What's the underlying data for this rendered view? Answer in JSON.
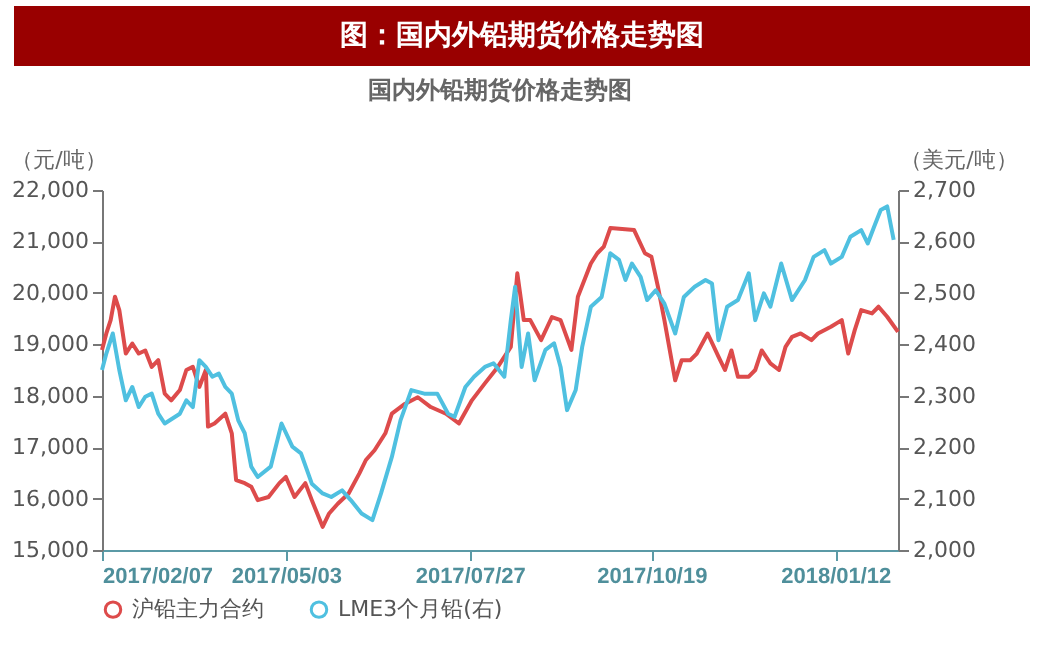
{
  "chart_data": {
    "type": "line",
    "title": "图：国内外铅期货价格走势图",
    "subtitle": "国内外铅期货价格走势图",
    "ylabel": "（元/吨）",
    "y2label": "（美元/吨）",
    "xlim": [
      "2017-02-07",
      "2018-02-10"
    ],
    "xticks": [
      {
        "value": "2017-02-07",
        "label": "2017/02/07"
      },
      {
        "value": "2017-05-03",
        "label": "2017/05/03"
      },
      {
        "value": "2017-07-27",
        "label": "2017/07/27"
      },
      {
        "value": "2017-10-19",
        "label": "2017/10/19"
      },
      {
        "value": "2018-01-12",
        "label": "2018/01/12"
      }
    ],
    "ylim": [
      15000,
      22000
    ],
    "yticks": [
      {
        "value": 15000,
        "label": "15,000"
      },
      {
        "value": 16000,
        "label": "16,000"
      },
      {
        "value": 17000,
        "label": "17,000"
      },
      {
        "value": 18000,
        "label": "18,000"
      },
      {
        "value": 19000,
        "label": "19,000"
      },
      {
        "value": 20000,
        "label": "20,000"
      },
      {
        "value": 21000,
        "label": "21,000"
      },
      {
        "value": 22000,
        "label": "22,000"
      }
    ],
    "y2lim": [
      2000,
      2700
    ],
    "y2ticks": [
      {
        "value": 2000,
        "label": "2,000"
      },
      {
        "value": 2100,
        "label": "2,100"
      },
      {
        "value": 2200,
        "label": "2,200"
      },
      {
        "value": 2300,
        "label": "2,300"
      },
      {
        "value": 2400,
        "label": "2,400"
      },
      {
        "value": 2500,
        "label": "2,500"
      },
      {
        "value": 2600,
        "label": "2,600"
      },
      {
        "value": 2700,
        "label": "2,700"
      }
    ],
    "legend": "bottom",
    "grid": false,
    "series": [
      {
        "name": "沪铅主力合约",
        "color": "#dd4b4b",
        "x": [
          "2017-02-07",
          "2017-02-09",
          "2017-02-11",
          "2017-02-13",
          "2017-02-15",
          "2017-02-18",
          "2017-02-21",
          "2017-02-24",
          "2017-02-27",
          "2017-03-02",
          "2017-03-05",
          "2017-03-08",
          "2017-03-11",
          "2017-03-15",
          "2017-03-18",
          "2017-03-21",
          "2017-03-24",
          "2017-03-27",
          "2017-03-28",
          "2017-03-31",
          "2017-04-05",
          "2017-04-08",
          "2017-04-10",
          "2017-04-14",
          "2017-04-17",
          "2017-04-20",
          "2017-04-25",
          "2017-04-30",
          "2017-05-03",
          "2017-05-07",
          "2017-05-12",
          "2017-05-15",
          "2017-05-20",
          "2017-05-23",
          "2017-05-27",
          "2017-06-01",
          "2017-06-06",
          "2017-06-09",
          "2017-06-13",
          "2017-06-18",
          "2017-06-21",
          "2017-06-27",
          "2017-07-03",
          "2017-07-09",
          "2017-07-16",
          "2017-07-22",
          "2017-07-28",
          "2017-08-03",
          "2017-08-09",
          "2017-08-15",
          "2017-08-18",
          "2017-08-21",
          "2017-08-24",
          "2017-08-29",
          "2017-09-03",
          "2017-09-07",
          "2017-09-12",
          "2017-09-15",
          "2017-09-21",
          "2017-09-24",
          "2017-09-27",
          "2017-09-30",
          "2017-10-11",
          "2017-10-16",
          "2017-10-19",
          "2017-10-22",
          "2017-10-25",
          "2017-10-30",
          "2017-11-02",
          "2017-11-06",
          "2017-11-09",
          "2017-11-14",
          "2017-11-19",
          "2017-11-22",
          "2017-11-25",
          "2017-11-28",
          "2017-12-03",
          "2017-12-06",
          "2017-12-09",
          "2017-12-13",
          "2017-12-17",
          "2017-12-20",
          "2017-12-23",
          "2017-12-27",
          "2018-01-01",
          "2018-01-04",
          "2018-01-10",
          "2018-01-15",
          "2018-01-18",
          "2018-01-21",
          "2018-01-24",
          "2018-01-29",
          "2018-02-01",
          "2018-02-05",
          "2018-02-10"
        ],
        "values": [
          18890,
          19210,
          19470,
          19925,
          19665,
          18820,
          19015,
          18820,
          18880,
          18560,
          18690,
          18040,
          17910,
          18110,
          18500,
          18560,
          18170,
          18500,
          17400,
          17460,
          17650,
          17270,
          16360,
          16300,
          16230,
          15970,
          16030,
          16300,
          16420,
          16030,
          16300,
          15970,
          15450,
          15710,
          15900,
          16100,
          16490,
          16750,
          16940,
          17270,
          17650,
          17840,
          17970,
          17780,
          17650,
          17460,
          17910,
          18240,
          18560,
          18950,
          20380,
          19470,
          19470,
          19080,
          19530,
          19470,
          18890,
          19925,
          20570,
          20770,
          20900,
          21260,
          21220,
          20770,
          20700,
          20120,
          19470,
          18300,
          18690,
          18690,
          18820,
          19210,
          18760,
          18500,
          18880,
          18370,
          18370,
          18500,
          18880,
          18630,
          18500,
          18950,
          19145,
          19210,
          19080,
          19210,
          19340,
          19470,
          18820,
          19275,
          19665,
          19600,
          19730,
          19535,
          19240
        ]
      },
      {
        "name": "LME3个月铅(右)",
        "color": "#4fc0e0",
        "axis": "y2",
        "x": [
          "2017-02-07",
          "2017-02-09",
          "2017-02-12",
          "2017-02-15",
          "2017-02-18",
          "2017-02-21",
          "2017-02-24",
          "2017-02-27",
          "2017-03-02",
          "2017-03-05",
          "2017-03-08",
          "2017-03-15",
          "2017-03-18",
          "2017-03-21",
          "2017-03-24",
          "2017-03-27",
          "2017-03-30",
          "2017-04-02",
          "2017-04-05",
          "2017-04-08",
          "2017-04-11",
          "2017-04-14",
          "2017-04-17",
          "2017-04-20",
          "2017-04-26",
          "2017-05-01",
          "2017-05-06",
          "2017-05-10",
          "2017-05-15",
          "2017-05-20",
          "2017-05-24",
          "2017-05-29",
          "2017-06-02",
          "2017-06-07",
          "2017-06-12",
          "2017-06-16",
          "2017-06-21",
          "2017-06-25",
          "2017-06-30",
          "2017-07-06",
          "2017-07-12",
          "2017-07-17",
          "2017-07-20",
          "2017-07-25",
          "2017-07-29",
          "2017-08-03",
          "2017-08-07",
          "2017-08-12",
          "2017-08-15",
          "2017-08-17",
          "2017-08-20",
          "2017-08-23",
          "2017-08-26",
          "2017-08-31",
          "2017-09-04",
          "2017-09-07",
          "2017-09-10",
          "2017-09-14",
          "2017-09-17",
          "2017-09-21",
          "2017-09-26",
          "2017-09-30",
          "2017-10-04",
          "2017-10-07",
          "2017-10-10",
          "2017-10-14",
          "2017-10-17",
          "2017-10-21",
          "2017-10-25",
          "2017-10-30",
          "2017-11-03",
          "2017-11-08",
          "2017-11-13",
          "2017-11-16",
          "2017-11-19",
          "2017-11-23",
          "2017-11-28",
          "2017-12-03",
          "2017-12-06",
          "2017-12-10",
          "2017-12-13",
          "2017-12-18",
          "2017-12-23",
          "2017-12-29",
          "2018-01-02",
          "2018-01-07",
          "2018-01-10",
          "2018-01-15",
          "2018-01-19",
          "2018-01-24",
          "2018-01-27",
          "2018-01-30",
          "2018-02-02",
          "2018-02-05",
          "2018-02-08"
        ],
        "values": [
          2350,
          2382,
          2421,
          2350,
          2291,
          2317,
          2278,
          2298,
          2304,
          2265,
          2246,
          2265,
          2291,
          2278,
          2369,
          2356,
          2337,
          2343,
          2317,
          2304,
          2252,
          2227,
          2162,
          2142,
          2162,
          2246,
          2201,
          2188,
          2129,
          2110,
          2103,
          2116,
          2097,
          2071,
          2058,
          2110,
          2181,
          2252,
          2311,
          2304,
          2304,
          2265,
          2259,
          2317,
          2337,
          2356,
          2363,
          2337,
          2447,
          2512,
          2356,
          2421,
          2330,
          2389,
          2402,
          2356,
          2272,
          2311,
          2395,
          2473,
          2492,
          2577,
          2564,
          2525,
          2557,
          2531,
          2486,
          2505,
          2479,
          2421,
          2492,
          2512,
          2525,
          2518,
          2408,
          2473,
          2486,
          2538,
          2447,
          2499,
          2473,
          2557,
          2486,
          2525,
          2570,
          2583,
          2557,
          2570,
          2609,
          2622,
          2596,
          2629,
          2661,
          2668,
          2603
        ]
      }
    ]
  }
}
